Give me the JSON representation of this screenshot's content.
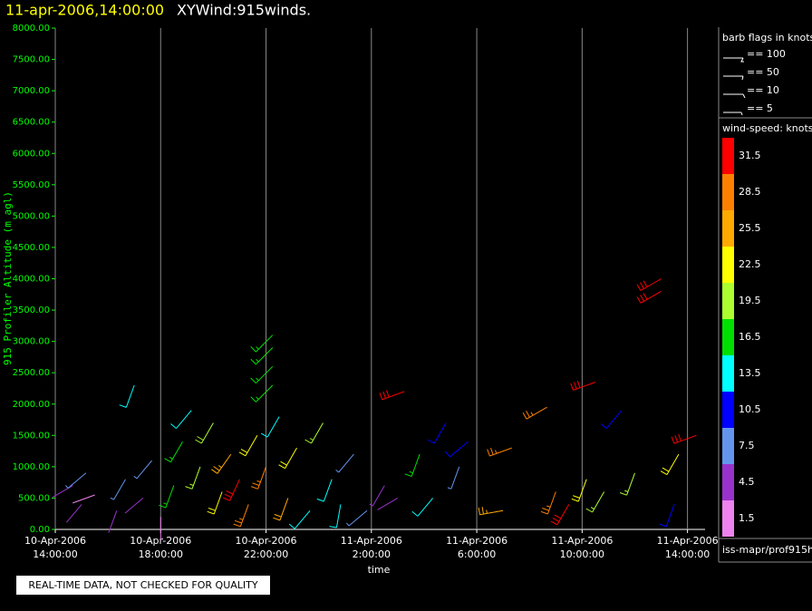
{
  "chart_data": {
    "type": "wind-barb",
    "title": "11-apr-2006,14:00:00",
    "subtitle": "XYWind:915winds.",
    "y_label": "915 Profiler Altitude (m agl)",
    "x_label": "time",
    "note": "REAL-TIME DATA, NOT CHECKED FOR QUALITY",
    "source": "iss-mapr/prof915h",
    "xlim": [
      "2006-04-10T14:00:00",
      "2006-04-11T14:40:00"
    ],
    "xticks": [
      {
        "value": "2006-04-10T14:00:00",
        "label": "10-Apr-2006\n14:00:00"
      },
      {
        "value": "2006-04-10T18:00:00",
        "label": "10-Apr-2006\n18:00:00"
      },
      {
        "value": "2006-04-10T22:00:00",
        "label": "10-Apr-2006\n22:00:00"
      },
      {
        "value": "2006-04-11T02:00:00",
        "label": "11-Apr-2006\n2:00:00"
      },
      {
        "value": "2006-04-11T06:00:00",
        "label": "11-Apr-2006\n6:00:00"
      },
      {
        "value": "2006-04-11T10:00:00",
        "label": "11-Apr-2006\n10:00:00"
      },
      {
        "value": "2006-04-11T14:00:00",
        "label": "11-Apr-2006\n14:00:00"
      }
    ],
    "ylim": [
      0,
      8000
    ],
    "yticks": [
      {
        "value": 0,
        "label": "0.00"
      },
      {
        "value": 500,
        "label": "500.00"
      },
      {
        "value": 1000,
        "label": "1000.00"
      },
      {
        "value": 1500,
        "label": "1500.00"
      },
      {
        "value": 2000,
        "label": "2000.00"
      },
      {
        "value": 2500,
        "label": "2500.00"
      },
      {
        "value": 3000,
        "label": "3000.00"
      },
      {
        "value": 3500,
        "label": "3500.00"
      },
      {
        "value": 4000,
        "label": "4000.00"
      },
      {
        "value": 4500,
        "label": "4500.00"
      },
      {
        "value": 5000,
        "label": "5000.00"
      },
      {
        "value": 5500,
        "label": "5500.00"
      },
      {
        "value": 6000,
        "label": "6000.00"
      },
      {
        "value": 6500,
        "label": "6500.00"
      },
      {
        "value": 7000,
        "label": "7000.00"
      },
      {
        "value": 7500,
        "label": "7500.00"
      },
      {
        "value": 8000,
        "label": "8000.00"
      }
    ],
    "grid": true,
    "barb_legend": {
      "title": "barb flags in knots",
      "entries": [
        "== 100",
        "== 50",
        "== 10",
        "== 5"
      ]
    },
    "colorbar": {
      "title": "wind-speed: knots",
      "levels": [
        31.5,
        28.5,
        25.5,
        22.5,
        19.5,
        16.5,
        13.5,
        10.5,
        7.5,
        4.5,
        1.5
      ],
      "colors": [
        "#ff0000",
        "#ff8000",
        "#ffaa00",
        "#ffff00",
        "#adff2f",
        "#00e000",
        "#00ffff",
        "#0000ff",
        "#6495ed",
        "#9932cc",
        "#ee82ee"
      ]
    },
    "barbs": {
      "x": [
        "2006-04-10T14:40:00",
        "2006-04-10T15:00:00",
        "2006-04-10T15:10:00",
        "2006-04-10T15:30:00",
        "2006-04-10T16:20:00",
        "2006-04-10T16:40:00",
        "2006-04-10T17:00:00",
        "2006-04-10T17:20:00",
        "2006-04-10T17:40:00",
        "2006-04-10T18:00:00",
        "2006-04-10T18:30:00",
        "2006-04-10T18:50:00",
        "2006-04-10T19:10:00",
        "2006-04-10T19:30:00",
        "2006-04-10T20:00:00",
        "2006-04-10T20:20:00",
        "2006-04-10T20:40:00",
        "2006-04-10T21:00:00",
        "2006-04-10T21:20:00",
        "2006-04-10T21:40:00",
        "2006-04-10T22:00:00",
        "2006-04-10T22:15:00",
        "2006-04-10T22:15:00",
        "2006-04-10T22:15:00",
        "2006-04-10T22:15:00",
        "2006-04-10T22:30:00",
        "2006-04-10T22:50:00",
        "2006-04-10T23:10:00",
        "2006-04-10T23:40:00",
        "2006-04-11T00:10:00",
        "2006-04-11T00:30:00",
        "2006-04-11T00:50:00",
        "2006-04-11T01:20:00",
        "2006-04-11T01:50:00",
        "2006-04-11T02:30:00",
        "2006-04-11T03:00:00",
        "2006-04-11T03:15:00",
        "2006-04-11T03:50:00",
        "2006-04-11T04:20:00",
        "2006-04-11T04:50:00",
        "2006-04-11T05:20:00",
        "2006-04-11T05:40:00",
        "2006-04-11T07:00:00",
        "2006-04-11T07:20:00",
        "2006-04-11T08:40:00",
        "2006-04-11T09:00:00",
        "2006-04-11T09:30:00",
        "2006-04-11T10:10:00",
        "2006-04-11T10:30:00",
        "2006-04-11T10:50:00",
        "2006-04-11T11:30:00",
        "2006-04-11T12:00:00",
        "2006-04-11T13:00:00",
        "2006-04-11T13:00:00",
        "2006-04-11T13:30:00",
        "2006-04-11T13:40:00",
        "2006-04-11T14:20:00"
      ],
      "y": [
        700,
        400,
        900,
        550,
        300,
        800,
        2300,
        500,
        1100,
        200,
        700,
        1400,
        1900,
        1000,
        1700,
        600,
        1200,
        800,
        400,
        1500,
        1000,
        2300,
        2600,
        2900,
        3100,
        1800,
        500,
        1300,
        300,
        1700,
        800,
        400,
        1200,
        300,
        700,
        500,
        2200,
        1200,
        500,
        1700,
        1000,
        1400,
        300,
        1300,
        1950,
        600,
        400,
        800,
        2350,
        600,
        1900,
        900,
        4000,
        3800,
        400,
        1200,
        1500
      ],
      "speed": [
        4.5,
        4.5,
        6,
        1.5,
        4.5,
        6,
        12,
        4.5,
        7,
        1.5,
        17,
        17,
        12,
        19,
        20,
        23,
        26,
        30,
        27,
        22,
        29,
        17,
        17,
        17,
        17,
        12,
        24,
        21,
        14,
        19,
        13,
        12,
        8,
        6,
        5,
        4,
        31,
        17,
        13,
        11,
        6,
        10,
        25,
        28,
        28,
        27,
        30,
        23,
        31,
        18,
        11,
        19,
        32,
        32,
        11,
        23,
        31
      ],
      "direction": [
        240,
        220,
        230,
        250,
        200,
        210,
        200,
        230,
        220,
        180,
        200,
        210,
        220,
        200,
        210,
        200,
        215,
        205,
        200,
        210,
        200,
        225,
        225,
        225,
        225,
        210,
        200,
        210,
        220,
        210,
        200,
        190,
        220,
        230,
        210,
        240,
        250,
        200,
        220,
        210,
        200,
        230,
        260,
        250,
        240,
        200,
        210,
        200,
        250,
        210,
        220,
        200,
        240,
        240,
        200,
        210,
        250
      ]
    }
  }
}
